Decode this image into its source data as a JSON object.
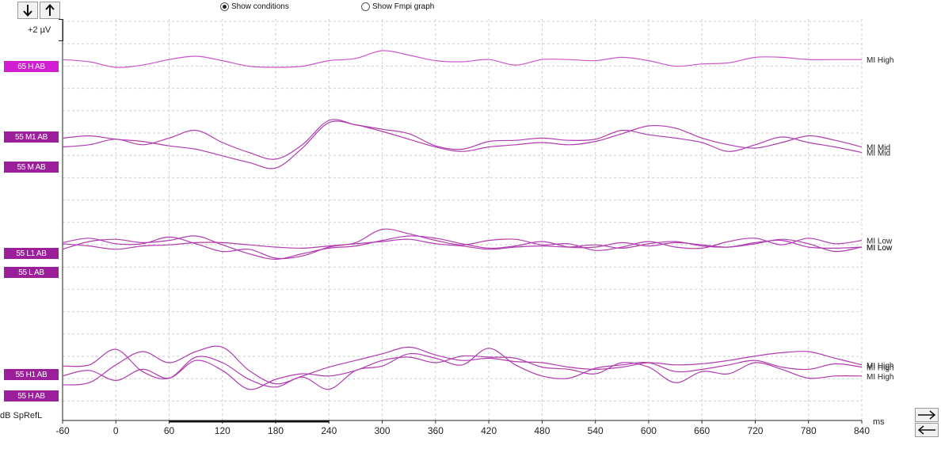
{
  "toolbar": {
    "down_arrow": "↓",
    "up_arrow": "↑",
    "radio_conditions": "Show conditions",
    "radio_fmpi": "Show Fmpi graph",
    "selected": "conditions"
  },
  "scale_label": "+2 µV",
  "y_unit": "dB SpRefL",
  "x_unit": "ms",
  "x_ticks": [
    "-60",
    "0",
    "60",
    "120",
    "180",
    "240",
    "300",
    "360",
    "420",
    "480",
    "540",
    "600",
    "660",
    "720",
    "780",
    "840"
  ],
  "left_labels": [
    "65 H AB",
    "55 M1 AB",
    "55 M AB",
    "55 L1 AB",
    "55 L AB",
    "55 H1 AB",
    "55 H AB"
  ],
  "colors": {
    "label_magenta": "#d21ed2",
    "label_purple": "#9b1e9b",
    "trace_magenta": "#cc55cc",
    "trace_purple": "#b03cb0",
    "grid": "#cfcfcf"
  },
  "chart_data": {
    "type": "line",
    "x_range": [
      -60,
      840
    ],
    "x_unit": "ms",
    "series": [
      {
        "name": "MI High",
        "group": 0,
        "x": [
          -60,
          -30,
          0,
          30,
          60,
          90,
          120,
          150,
          180,
          210,
          240,
          270,
          300,
          330,
          360,
          390,
          420,
          450,
          480,
          510,
          540,
          570,
          600,
          630,
          660,
          690,
          720,
          750,
          780,
          810,
          840
        ],
        "y": [
          0.2,
          0.0,
          -0.5,
          -0.3,
          0.2,
          0.5,
          0.1,
          -0.4,
          -0.5,
          -0.4,
          0.1,
          0.3,
          1.0,
          0.6,
          0.1,
          0.0,
          0.2,
          -0.3,
          0.2,
          0.2,
          0.1,
          0.4,
          0.1,
          -0.4,
          -0.2,
          -0.1,
          0.4,
          0.4,
          0.2,
          0.2,
          0.2
        ]
      },
      {
        "name": "MI Mid",
        "group": 1,
        "x": [
          -60,
          -30,
          0,
          30,
          60,
          90,
          120,
          150,
          180,
          210,
          240,
          270,
          300,
          330,
          360,
          390,
          420,
          450,
          480,
          510,
          540,
          570,
          600,
          630,
          660,
          690,
          720,
          750,
          780,
          810,
          840
        ],
        "y": [
          0.4,
          0.6,
          0.3,
          0.1,
          -0.3,
          -0.6,
          -1.2,
          -1.8,
          -2.3,
          -0.5,
          1.8,
          1.6,
          1.0,
          0.3,
          -0.4,
          -0.8,
          -0.4,
          -0.2,
          0.0,
          -0.2,
          0.1,
          0.8,
          1.5,
          1.3,
          0.4,
          -0.2,
          -0.5,
          0.0,
          0.6,
          0.2,
          -0.4
        ]
      },
      {
        "name": "MI Mid",
        "group": 1,
        "x": [
          -60,
          -30,
          0,
          30,
          60,
          90,
          120,
          150,
          180,
          210,
          240,
          270,
          300,
          330,
          360,
          390,
          420,
          450,
          480,
          510,
          540,
          570,
          600,
          630,
          660,
          690,
          720,
          750,
          780,
          810,
          840
        ],
        "y": [
          -0.4,
          -0.2,
          0.3,
          -0.2,
          0.4,
          1.1,
          0.0,
          -0.9,
          -1.5,
          -0.2,
          2.0,
          1.6,
          1.2,
          0.8,
          -0.3,
          -0.6,
          0.1,
          0.2,
          0.4,
          0.2,
          0.3,
          1.1,
          0.7,
          0.4,
          0.0,
          -0.8,
          -0.2,
          0.5,
          0.0,
          -0.4,
          -0.9
        ]
      },
      {
        "name": "MI Low",
        "group": 2,
        "x": [
          -60,
          -30,
          0,
          30,
          60,
          90,
          120,
          150,
          180,
          210,
          240,
          270,
          300,
          330,
          360,
          390,
          420,
          450,
          480,
          510,
          540,
          570,
          600,
          630,
          660,
          690,
          720,
          750,
          780,
          810,
          840
        ],
        "y": [
          0.4,
          0.8,
          0.3,
          0.3,
          0.9,
          0.3,
          -0.4,
          -0.2,
          -1.0,
          -0.8,
          0.0,
          0.4,
          1.6,
          1.2,
          0.6,
          0.2,
          0.6,
          0.7,
          0.2,
          0.3,
          -0.3,
          0.0,
          0.5,
          0.0,
          -0.1,
          0.5,
          0.8,
          0.2,
          0.8,
          0.3,
          0.6
        ]
      },
      {
        "name": "MI Low",
        "group": 2,
        "x": [
          -60,
          -30,
          0,
          30,
          60,
          90,
          120,
          150,
          180,
          210,
          240,
          270,
          300,
          330,
          360,
          390,
          420,
          450,
          480,
          510,
          540,
          570,
          600,
          630,
          660,
          690,
          720,
          750,
          780,
          810,
          840
        ],
        "y": [
          -0.2,
          0.5,
          0.7,
          0.4,
          0.6,
          1.0,
          0.2,
          -0.6,
          -1.1,
          -0.6,
          -0.1,
          0.1,
          0.6,
          1.0,
          0.8,
          0.3,
          -0.1,
          0.1,
          0.5,
          0.0,
          0.0,
          0.4,
          0.1,
          0.4,
          0.2,
          0.0,
          0.4,
          0.6,
          0.0,
          -0.1,
          0.0
        ]
      },
      {
        "name": "MI Low",
        "group": 2,
        "x": [
          -60,
          -30,
          0,
          30,
          60,
          90,
          120,
          150,
          180,
          210,
          240,
          270,
          300,
          330,
          360,
          390,
          420,
          450,
          480,
          510,
          540,
          570,
          600,
          630,
          660,
          690,
          720,
          750,
          780,
          810,
          840
        ],
        "y": [
          0.3,
          0.1,
          -0.2,
          0.1,
          0.2,
          0.4,
          0.4,
          0.2,
          0.0,
          -0.1,
          0.1,
          0.3,
          0.5,
          0.7,
          0.3,
          0.1,
          -0.2,
          0.0,
          0.1,
          0.0,
          0.2,
          -0.1,
          0.3,
          0.5,
          0.1,
          0.0,
          0.3,
          0.7,
          0.3,
          -0.4,
          0.0
        ]
      },
      {
        "name": "MI High",
        "group": 3,
        "x": [
          -60,
          -30,
          0,
          30,
          60,
          90,
          120,
          150,
          180,
          210,
          240,
          270,
          300,
          330,
          360,
          390,
          420,
          450,
          480,
          510,
          540,
          570,
          600,
          630,
          660,
          690,
          720,
          750,
          780,
          810,
          840
        ],
        "y": [
          -1.0,
          -0.8,
          0.8,
          2.0,
          1.0,
          2.0,
          2.4,
          0.3,
          -0.9,
          -0.2,
          0.6,
          1.2,
          1.8,
          2.4,
          1.7,
          1.2,
          1.4,
          1.1,
          1.0,
          0.6,
          0.4,
          0.6,
          1.0,
          0.8,
          0.9,
          1.2,
          1.6,
          1.9,
          2.0,
          1.4,
          0.8
        ]
      },
      {
        "name": "MI High",
        "group": 3,
        "x": [
          -60,
          -30,
          0,
          30,
          60,
          90,
          120,
          150,
          180,
          210,
          240,
          270,
          300,
          330,
          360,
          390,
          420,
          450,
          480,
          510,
          540,
          570,
          600,
          630,
          660,
          690,
          720,
          750,
          780,
          810,
          840
        ],
        "y": [
          0.7,
          0.8,
          2.2,
          0.2,
          -0.4,
          1.5,
          1.0,
          -0.5,
          -1.2,
          -0.3,
          -1.4,
          0.3,
          0.7,
          1.8,
          1.4,
          0.8,
          2.3,
          0.8,
          -0.2,
          -0.4,
          0.5,
          0.8,
          1.0,
          0.2,
          0.4,
          0.8,
          1.2,
          0.6,
          0.4,
          0.9,
          0.6
        ]
      },
      {
        "name": "MI High",
        "group": 3,
        "x": [
          -60,
          -30,
          0,
          30,
          60,
          90,
          120,
          150,
          180,
          210,
          240,
          270,
          300,
          330,
          360,
          390,
          420,
          450,
          480,
          510,
          540,
          570,
          600,
          630,
          660,
          690,
          720,
          750,
          780,
          810,
          840
        ],
        "y": [
          -0.2,
          0.3,
          -0.6,
          0.4,
          -0.4,
          1.2,
          0.3,
          -1.4,
          -0.5,
          0.0,
          -0.2,
          0.3,
          1.2,
          1.5,
          1.0,
          1.6,
          1.5,
          1.4,
          0.6,
          0.4,
          0.0,
          1.0,
          0.6,
          -0.8,
          0.2,
          0.0,
          1.0,
          0.4,
          -0.4,
          -0.2,
          -0.2
        ]
      }
    ]
  }
}
